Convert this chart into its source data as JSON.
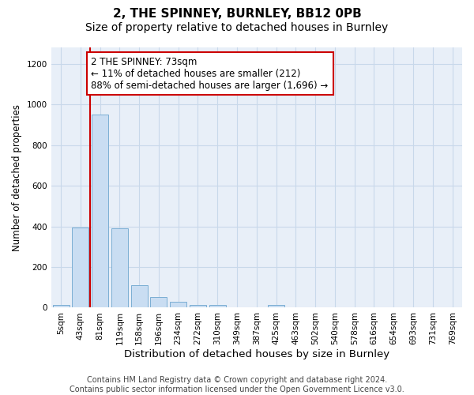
{
  "title": "2, THE SPINNEY, BURNLEY, BB12 0PB",
  "subtitle": "Size of property relative to detached houses in Burnley",
  "xlabel": "Distribution of detached houses by size in Burnley",
  "ylabel": "Number of detached properties",
  "bar_labels": [
    "5sqm",
    "43sqm",
    "81sqm",
    "119sqm",
    "158sqm",
    "196sqm",
    "234sqm",
    "272sqm",
    "310sqm",
    "349sqm",
    "387sqm",
    "425sqm",
    "463sqm",
    "502sqm",
    "540sqm",
    "578sqm",
    "616sqm",
    "654sqm",
    "693sqm",
    "731sqm",
    "769sqm"
  ],
  "bar_values": [
    15,
    395,
    950,
    390,
    110,
    52,
    28,
    15,
    14,
    0,
    0,
    12,
    0,
    0,
    0,
    0,
    0,
    0,
    0,
    0,
    0
  ],
  "bar_color": "#c9ddf2",
  "bar_edge_color": "#7baed4",
  "grid_color": "#c8d8ea",
  "background_color": "#e8eff8",
  "annotation_text": "2 THE SPINNEY: 73sqm\n← 11% of detached houses are smaller (212)\n88% of semi-detached houses are larger (1,696) →",
  "annotation_box_facecolor": "#ffffff",
  "annotation_box_edgecolor": "#cc0000",
  "redline_bar_index": 2,
  "ylim": [
    0,
    1280
  ],
  "yticks": [
    0,
    200,
    400,
    600,
    800,
    1000,
    1200
  ],
  "footnote": "Contains HM Land Registry data © Crown copyright and database right 2024.\nContains public sector information licensed under the Open Government Licence v3.0.",
  "title_fontsize": 11,
  "subtitle_fontsize": 10,
  "xlabel_fontsize": 9.5,
  "ylabel_fontsize": 8.5,
  "tick_fontsize": 7.5,
  "annotation_fontsize": 8.5,
  "footnote_fontsize": 7
}
